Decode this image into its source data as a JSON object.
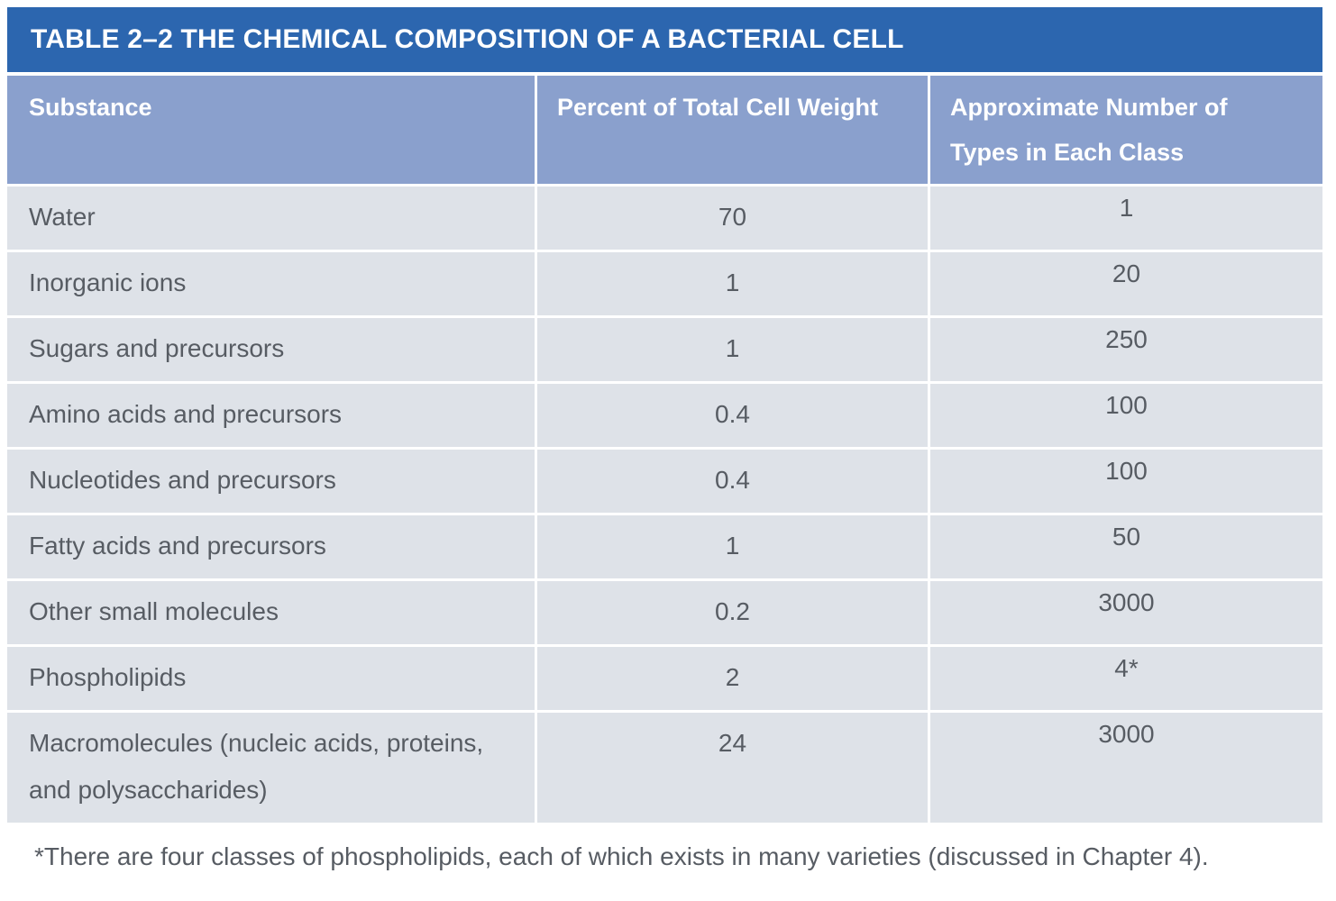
{
  "table": {
    "title": "TABLE 2–2 THE CHEMICAL COMPOSITION OF A BACTERIAL CELL",
    "columns": [
      "Substance",
      "Percent of Total Cell Weight",
      "Approximate Number of Types in Each Class"
    ],
    "rows": [
      {
        "substance": "Water",
        "percent": "70",
        "types": "1"
      },
      {
        "substance": "Inorganic ions",
        "percent": "1",
        "types": "20"
      },
      {
        "substance": "Sugars and precursors",
        "percent": "1",
        "types": "250"
      },
      {
        "substance": "Amino acids and precursors",
        "percent": "0.4",
        "types": "100"
      },
      {
        "substance": "Nucleotides and precursors",
        "percent": "0.4",
        "types": "100"
      },
      {
        "substance": "Fatty acids and precursors",
        "percent": "1",
        "types": "50"
      },
      {
        "substance": "Other small molecules",
        "percent": "0.2",
        "types": "3000"
      },
      {
        "substance": "Phospholipids",
        "percent": "2",
        "types": "4*"
      },
      {
        "substance": "Macromolecules (nucleic acids, proteins, and polysaccharides)",
        "percent": "24",
        "types": "3000"
      }
    ],
    "footnote": "*There are four classes of phospholipids, each of which exists in many varieties (discussed in Chapter 4)."
  },
  "colors": {
    "title_bar": "#2c66af",
    "header_bg": "#8aa0cd",
    "row_bg": "#dee2e8",
    "header_text": "#ffffff",
    "body_text": "#575c63",
    "page_bg": "#ffffff"
  }
}
